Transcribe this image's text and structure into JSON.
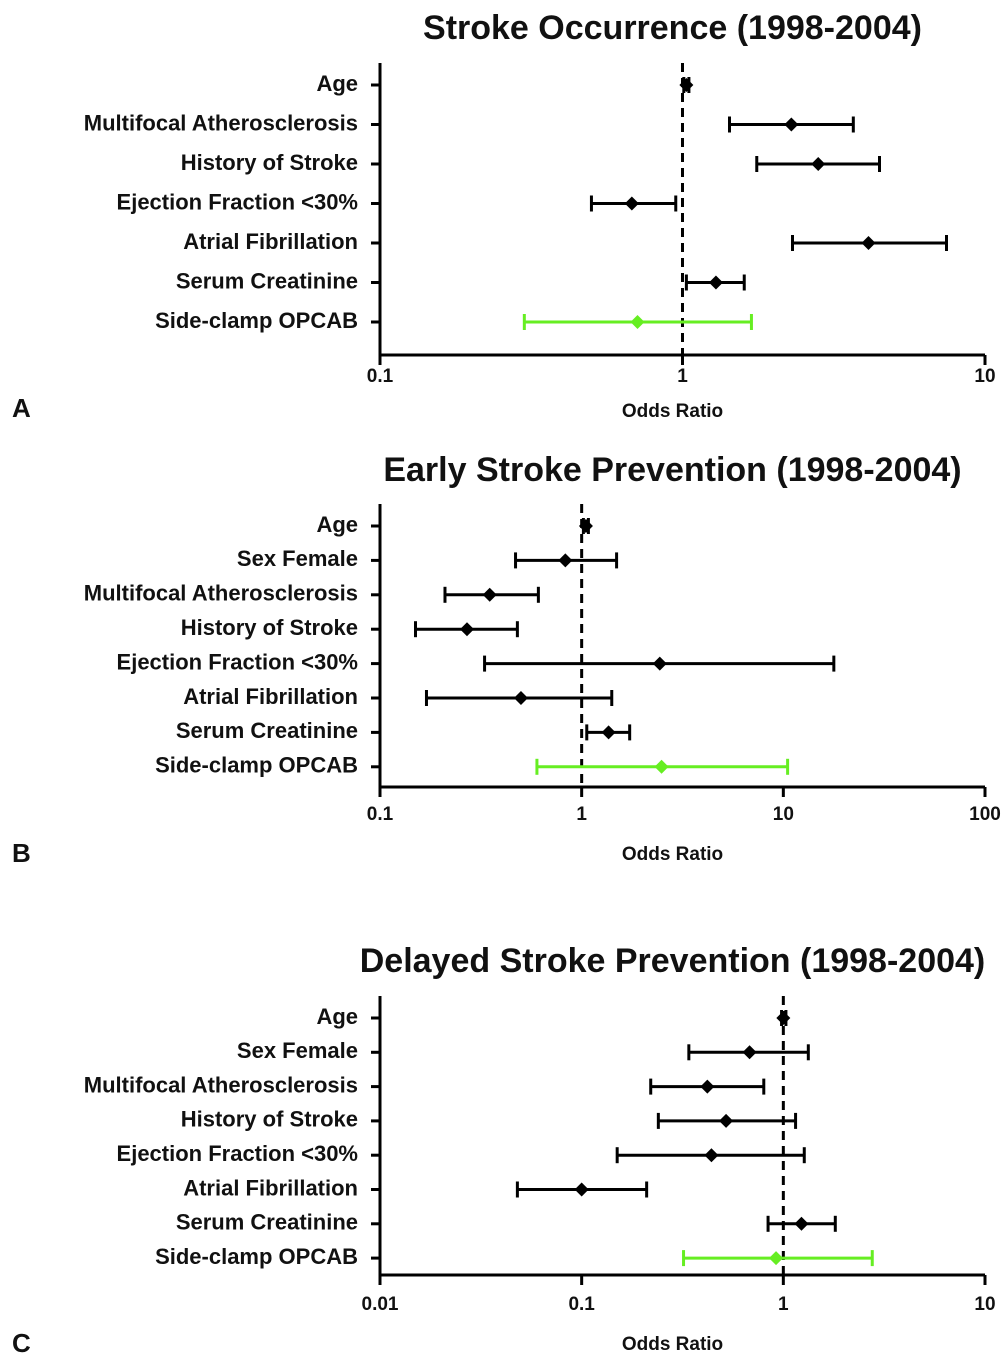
{
  "chart_data": [
    {
      "type": "forest",
      "title": "Stroke Occurrence (1998-2004)",
      "panel": "A",
      "xlabel": "Odds Ratio",
      "xscale": "log",
      "categories": [
        "Age",
        "Multifocal Atherosclerosis",
        "History of Stroke",
        "Ejection Fraction <30%",
        "Atrial Fibrillation",
        "Serum Creatinine",
        "Side-clamp OPCAB"
      ],
      "values": [
        1.03,
        2.29,
        2.81,
        0.68,
        4.12,
        1.29,
        0.71
      ],
      "lower": [
        1.01,
        1.43,
        1.76,
        0.5,
        2.31,
        1.03,
        0.3
      ],
      "upper": [
        1.05,
        3.67,
        4.48,
        0.95,
        7.46,
        1.6,
        1.69
      ],
      "colors": [
        "#000000",
        "#000000",
        "#000000",
        "#000000",
        "#000000",
        "#000000",
        "#66ee22"
      ],
      "xlim": [
        0.1,
        10
      ],
      "xticks": [
        0.1,
        1,
        10
      ],
      "ref_line": 1
    },
    {
      "type": "forest",
      "title": "Early Stroke Prevention (1998-2004)",
      "panel": "B",
      "xlabel": "Odds Ratio",
      "xscale": "log",
      "categories": [
        "Age",
        "Sex Female",
        "Multifocal Atherosclerosis",
        "History of Stroke",
        "Ejection Fraction <30%",
        "Atrial Fibrillation",
        "Serum Creatinine",
        "Side-clamp OPCAB"
      ],
      "values": [
        1.05,
        0.83,
        0.35,
        0.27,
        2.44,
        0.5,
        1.36,
        2.49
      ],
      "lower": [
        1.02,
        0.47,
        0.21,
        0.15,
        0.33,
        0.17,
        1.06,
        0.6
      ],
      "upper": [
        1.08,
        1.49,
        0.61,
        0.48,
        17.8,
        1.41,
        1.73,
        10.5
      ],
      "colors": [
        "#000000",
        "#000000",
        "#000000",
        "#000000",
        "#000000",
        "#000000",
        "#000000",
        "#66ee22"
      ],
      "xlim": [
        0.1,
        100
      ],
      "xticks": [
        0.1,
        1,
        10,
        100
      ],
      "ref_line": 1
    },
    {
      "type": "forest",
      "title": "Delayed Stroke Prevention (1998-2004)",
      "panel": "C",
      "xlabel": "Odds Ratio",
      "xscale": "log",
      "categories": [
        "Age",
        "Sex Female",
        "Multifocal Atherosclerosis",
        "History of Stroke",
        "Ejection Fraction <30%",
        "Atrial Fibrillation",
        "Serum Creatinine",
        "Side-clamp OPCAB"
      ],
      "values": [
        1.0,
        0.68,
        0.42,
        0.52,
        0.44,
        0.1,
        1.23,
        0.92
      ],
      "lower": [
        0.98,
        0.34,
        0.22,
        0.24,
        0.15,
        0.048,
        0.84,
        0.32
      ],
      "upper": [
        1.03,
        1.33,
        0.8,
        1.15,
        1.27,
        0.21,
        1.81,
        2.76
      ],
      "colors": [
        "#000000",
        "#000000",
        "#000000",
        "#000000",
        "#000000",
        "#000000",
        "#000000",
        "#66ee22"
      ],
      "xlim": [
        0.01,
        10
      ],
      "xticks": [
        0.01,
        0.1,
        1,
        10
      ],
      "ref_line": 1
    }
  ]
}
